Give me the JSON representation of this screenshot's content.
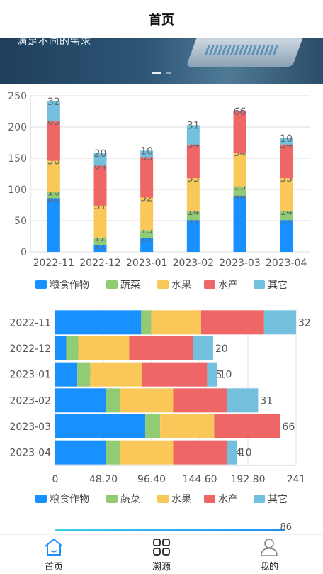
{
  "header": {
    "title": "首页"
  },
  "banner": {
    "caption": "满足不同的需求"
  },
  "tabbar": {
    "items": [
      {
        "label": "首页",
        "icon": "home-icon",
        "active": true
      },
      {
        "label": "溯源",
        "icon": "grid-icon",
        "active": false
      },
      {
        "label": "我的",
        "icon": "user-icon",
        "active": false
      }
    ]
  },
  "colors": {
    "accent": "#1e90ff"
  },
  "chart_data": [
    {
      "type": "bar",
      "orientation": "vertical",
      "stacked": true,
      "categories": [
        "2022-11",
        "2022-12",
        "2023-01",
        "2023-02",
        "2023-03",
        "2023-04"
      ],
      "series": [
        {
          "name": "粮食作物",
          "color": "#1890ff",
          "values": [
            86,
            11,
            22,
            51,
            90,
            51
          ]
        },
        {
          "name": "蔬菜",
          "color": "#91cb74",
          "values": [
            10,
            12,
            13,
            14,
            15,
            14
          ]
        },
        {
          "name": "水果",
          "color": "#fac858",
          "values": [
            50,
            51,
            52,
            53,
            54,
            53
          ]
        },
        {
          "name": "水产",
          "color": "#ee6666",
          "values": [
            63,
            64,
            65,
            54,
            66,
            54
          ]
        },
        {
          "name": "其它",
          "color": "#73c0de",
          "values": [
            32,
            20,
            10,
            31,
            0,
            10
          ]
        }
      ],
      "ylim": [
        0,
        250
      ],
      "yticks": [
        0,
        50,
        100,
        150,
        200,
        250
      ],
      "grid": true,
      "legend": "bottom"
    },
    {
      "type": "bar",
      "orientation": "horizontal",
      "stacked": true,
      "categories": [
        "2022-11",
        "2022-12",
        "2023-01",
        "2023-02",
        "2023-03",
        "2023-04"
      ],
      "series": [
        {
          "name": "粮食作物",
          "color": "#1890ff",
          "values": [
            86,
            11,
            22,
            51,
            90,
            51
          ]
        },
        {
          "name": "蔬菜",
          "color": "#91cb74",
          "values": [
            10,
            12,
            13,
            14,
            15,
            14
          ]
        },
        {
          "name": "水果",
          "color": "#fac858",
          "values": [
            50,
            51,
            52,
            53,
            54,
            53
          ]
        },
        {
          "name": "水产",
          "color": "#ee6666",
          "values": [
            63,
            64,
            65,
            54,
            66,
            54
          ]
        },
        {
          "name": "其它",
          "color": "#73c0de",
          "values": [
            32,
            20,
            10,
            31,
            0,
            10
          ]
        }
      ],
      "xlim": [
        0,
        241
      ],
      "xticks": [
        "0",
        "48.20",
        "96.40",
        "144.60",
        "192.80",
        "241"
      ],
      "grid": true,
      "legend": "bottom"
    },
    {
      "type": "bar",
      "orientation": "horizontal",
      "partial": true,
      "label": "86"
    }
  ]
}
